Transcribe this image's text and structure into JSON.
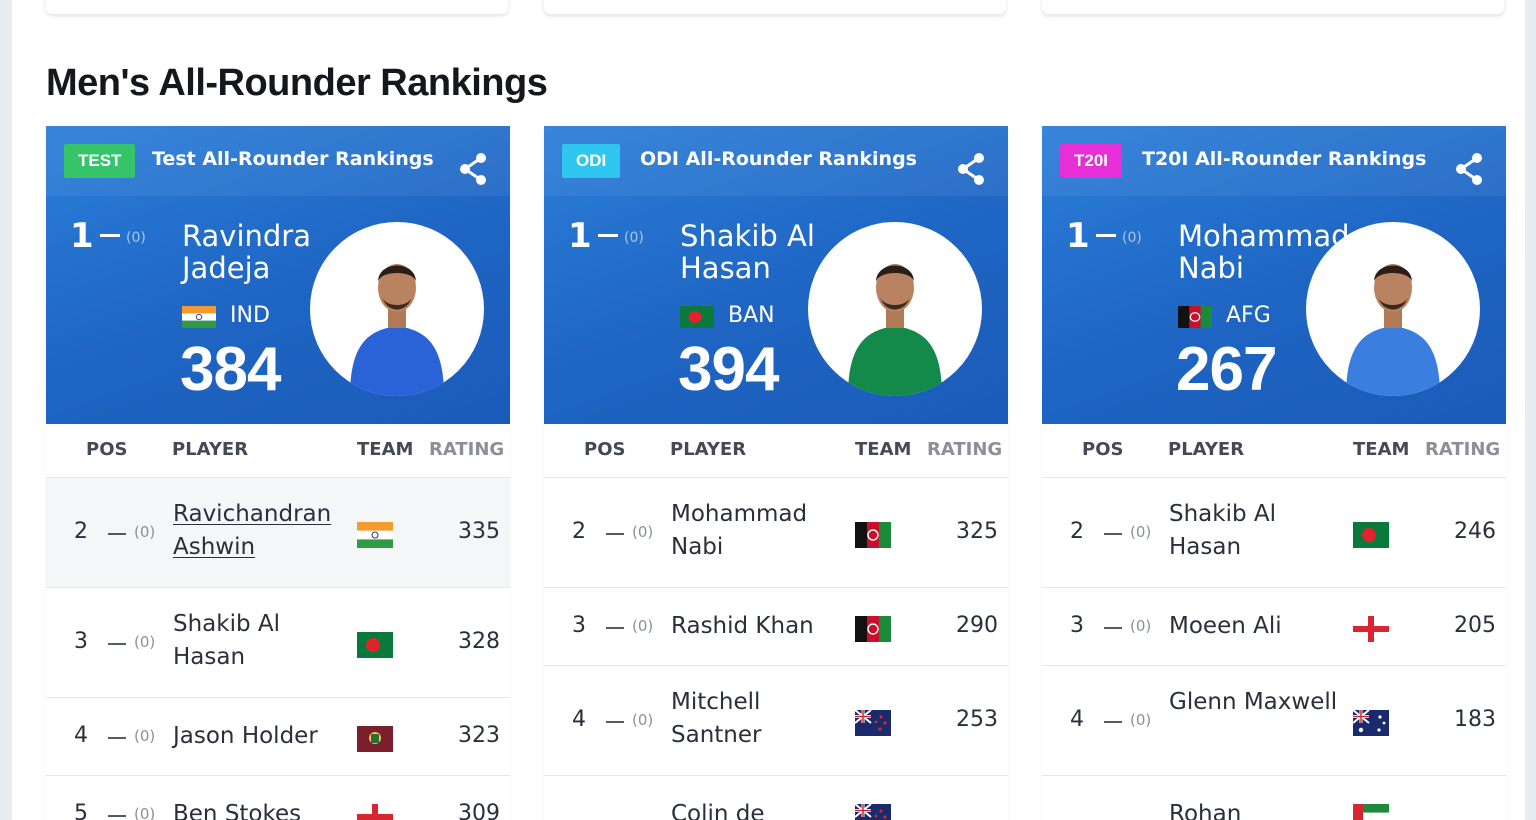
{
  "section_title": "Men's All-Rounder Rankings",
  "table_headers": {
    "pos": "POS",
    "player": "PLAYER",
    "team": "TEAM",
    "rating": "RATING"
  },
  "cards": [
    {
      "badge": "TEST",
      "badge_color": "#35c46a",
      "title": "Test All-Rounder Rankings",
      "leader": {
        "pos": "1",
        "change": "(0)",
        "name": "Ravindra Jadeja",
        "team": "IND",
        "flag": "india",
        "rating": "384",
        "jersey": "#2a62d8"
      },
      "rows": [
        {
          "pos": "2",
          "change": "(0)",
          "name": "Ravichandran Ashwin",
          "flag": "india",
          "rating": "335"
        },
        {
          "pos": "3",
          "change": "(0)",
          "name": "Shakib Al Hasan",
          "flag": "bangladesh",
          "rating": "328"
        },
        {
          "pos": "4",
          "change": "(0)",
          "name": "Jason Holder",
          "flag": "west-indies",
          "rating": "323"
        },
        {
          "pos": "5",
          "change": "(0)",
          "name": "Ben Stokes",
          "flag": "england",
          "rating": "309"
        }
      ]
    },
    {
      "badge": "ODI",
      "badge_color": "#2fc7ef",
      "title": "ODI All-Rounder Rankings",
      "leader": {
        "pos": "1",
        "change": "(0)",
        "name": "Shakib Al Hasan",
        "team": "BAN",
        "flag": "bangladesh",
        "rating": "394",
        "jersey": "#13894a"
      },
      "rows": [
        {
          "pos": "2",
          "change": "(0)",
          "name": "Mohammad Nabi",
          "flag": "afghanistan",
          "rating": "325"
        },
        {
          "pos": "3",
          "change": "(0)",
          "name": "Rashid Khan",
          "flag": "afghanistan",
          "rating": "290"
        },
        {
          "pos": "4",
          "change": "(0)",
          "name": "Mitchell Santner",
          "flag": "new-zealand",
          "rating": "253"
        },
        {
          "pos": "",
          "change": "",
          "name": "Colin de",
          "flag": "new-zealand",
          "rating": ""
        }
      ]
    },
    {
      "badge": "T20I",
      "badge_color": "#e62fd6",
      "title": "T20I All-Rounder Rankings",
      "leader": {
        "pos": "1",
        "change": "(0)",
        "name": "Mohammad Nabi",
        "team": "AFG",
        "flag": "afghanistan",
        "rating": "267",
        "jersey": "#3a7fe0"
      },
      "rows": [
        {
          "pos": "2",
          "change": "(0)",
          "name": "Shakib Al Hasan",
          "flag": "bangladesh",
          "rating": "246"
        },
        {
          "pos": "3",
          "change": "(0)",
          "name": "Moeen Ali",
          "flag": "england",
          "rating": "205"
        },
        {
          "pos": "4",
          "change": "(0)",
          "name": "Glenn Maxwell",
          "flag": "australia",
          "rating": "183"
        },
        {
          "pos": "",
          "change": "",
          "name": "Rohan",
          "flag": "uae",
          "rating": ""
        }
      ]
    }
  ]
}
